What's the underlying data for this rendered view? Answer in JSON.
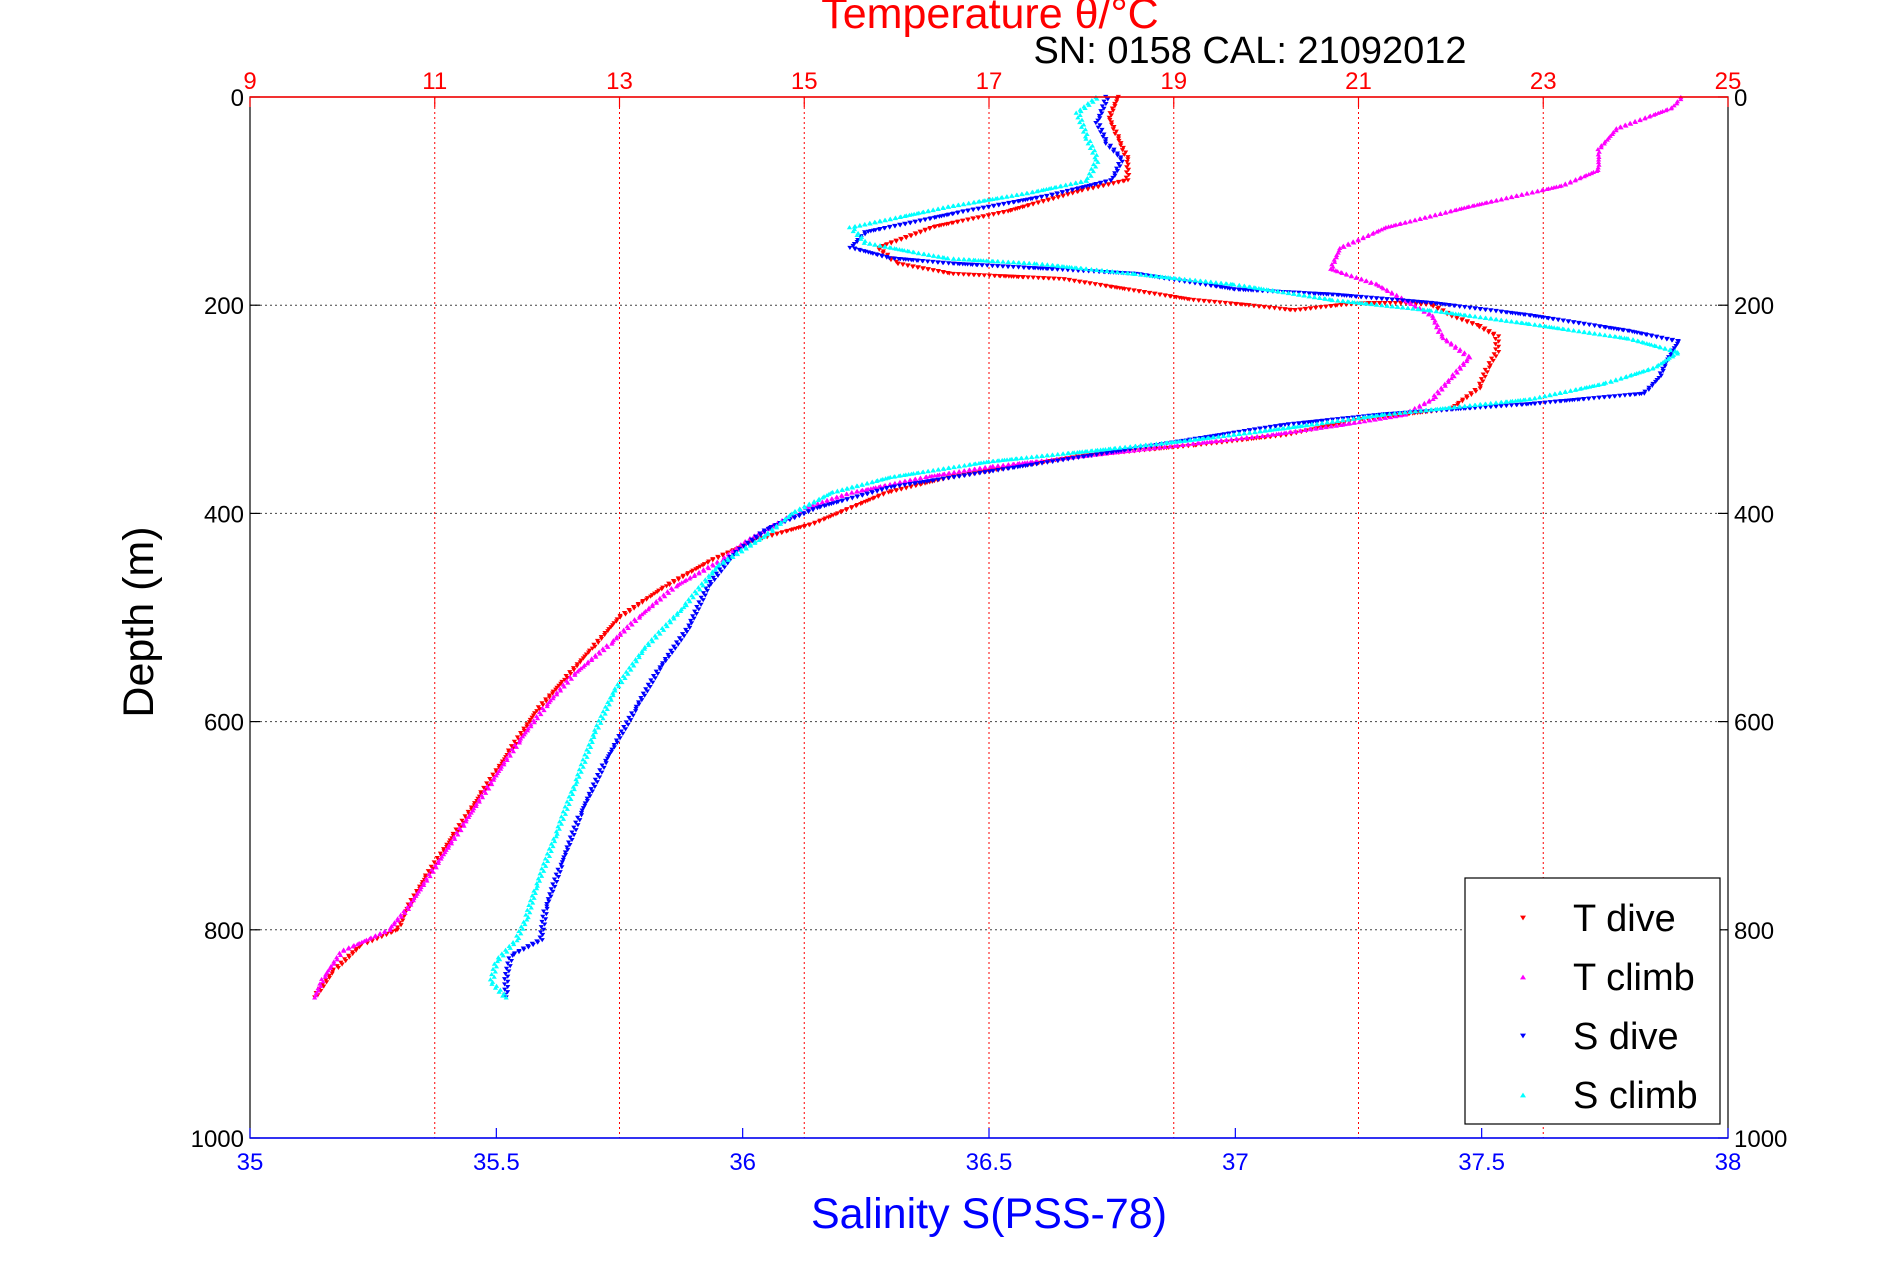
{
  "chart_data": {
    "type": "scatter",
    "title": "Temperature θ/°C",
    "subtitle": "SN: 0158  CAL: 21092012",
    "xlabel": "Salinity S(PSS-78)",
    "ylabel": "Depth (m)",
    "y_reversed": true,
    "ylim": [
      0,
      1000
    ],
    "yticks": [
      "0",
      "200",
      "400",
      "600",
      "800",
      "1000"
    ],
    "x_bottom": {
      "range": [
        35,
        38
      ],
      "ticks": [
        "35",
        "35.5",
        "36",
        "36.5",
        "37",
        "37.5",
        "38"
      ],
      "color": "#0000ff"
    },
    "x_top": {
      "range": [
        9,
        25
      ],
      "ticks": [
        "9",
        "11",
        "13",
        "15",
        "17",
        "19",
        "21",
        "23",
        "25"
      ],
      "color": "#ff0000"
    },
    "grid": "dotted",
    "legend_position": "bottom-right",
    "series": [
      {
        "name": "T dive",
        "axis": "top",
        "color": "#ff0000",
        "marker": "triangle-down",
        "points": [
          [
            18.4,
            0
          ],
          [
            18.3,
            20
          ],
          [
            18.4,
            40
          ],
          [
            18.5,
            60
          ],
          [
            18.5,
            80
          ],
          [
            18.0,
            90
          ],
          [
            17.2,
            110
          ],
          [
            16.4,
            125
          ],
          [
            15.8,
            145
          ],
          [
            16.0,
            160
          ],
          [
            16.6,
            170
          ],
          [
            17.8,
            175
          ],
          [
            18.5,
            185
          ],
          [
            19.2,
            195
          ],
          [
            19.8,
            200
          ],
          [
            20.3,
            205
          ],
          [
            20.8,
            200
          ],
          [
            21.1,
            198
          ],
          [
            21.5,
            198
          ],
          [
            21.8,
            200
          ],
          [
            22.0,
            210
          ],
          [
            22.3,
            220
          ],
          [
            22.5,
            230
          ],
          [
            22.5,
            245
          ],
          [
            22.4,
            260
          ],
          [
            22.3,
            280
          ],
          [
            22.0,
            300
          ],
          [
            21.0,
            310
          ],
          [
            20.2,
            325
          ],
          [
            19.2,
            335
          ],
          [
            18.0,
            345
          ],
          [
            17.3,
            355
          ],
          [
            16.6,
            365
          ],
          [
            15.9,
            380
          ],
          [
            15.5,
            395
          ],
          [
            15.1,
            410
          ],
          [
            14.5,
            425
          ],
          [
            14.0,
            445
          ],
          [
            13.5,
            470
          ],
          [
            13.0,
            500
          ],
          [
            12.7,
            530
          ],
          [
            12.4,
            560
          ],
          [
            12.1,
            590
          ],
          [
            11.8,
            630
          ],
          [
            11.5,
            670
          ],
          [
            11.2,
            710
          ],
          [
            10.9,
            750
          ],
          [
            10.7,
            780
          ],
          [
            10.6,
            800
          ],
          [
            10.2,
            815
          ],
          [
            9.9,
            840
          ],
          [
            9.7,
            865
          ]
        ]
      },
      {
        "name": "T climb",
        "axis": "top",
        "color": "#ff00ff",
        "marker": "triangle-up",
        "points": [
          [
            24.5,
            0
          ],
          [
            24.4,
            10
          ],
          [
            23.8,
            30
          ],
          [
            23.6,
            50
          ],
          [
            23.6,
            70
          ],
          [
            23.2,
            85
          ],
          [
            22.2,
            105
          ],
          [
            21.3,
            125
          ],
          [
            20.8,
            145
          ],
          [
            20.7,
            165
          ],
          [
            21.2,
            180
          ],
          [
            21.5,
            195
          ],
          [
            21.8,
            210
          ],
          [
            21.9,
            230
          ],
          [
            22.2,
            250
          ],
          [
            22.0,
            270
          ],
          [
            21.8,
            290
          ],
          [
            21.5,
            305
          ],
          [
            20.8,
            315
          ],
          [
            20.0,
            325
          ],
          [
            19.0,
            335
          ],
          [
            18.0,
            345
          ],
          [
            17.0,
            355
          ],
          [
            16.3,
            365
          ],
          [
            15.5,
            380
          ],
          [
            15.0,
            395
          ],
          [
            14.7,
            410
          ],
          [
            14.4,
            425
          ],
          [
            14.1,
            445
          ],
          [
            13.6,
            470
          ],
          [
            13.2,
            500
          ],
          [
            12.9,
            525
          ],
          [
            12.5,
            555
          ],
          [
            12.2,
            585
          ],
          [
            11.9,
            620
          ],
          [
            11.6,
            660
          ],
          [
            11.3,
            700
          ],
          [
            11.0,
            740
          ],
          [
            10.7,
            780
          ],
          [
            10.5,
            800
          ],
          [
            10.0,
            820
          ],
          [
            9.8,
            845
          ],
          [
            9.7,
            865
          ]
        ]
      },
      {
        "name": "S dive",
        "axis": "bottom",
        "color": "#0000ff",
        "marker": "triangle-down",
        "points": [
          [
            36.74,
            0
          ],
          [
            36.72,
            25
          ],
          [
            36.74,
            45
          ],
          [
            36.77,
            60
          ],
          [
            36.75,
            80
          ],
          [
            36.62,
            95
          ],
          [
            36.45,
            110
          ],
          [
            36.25,
            130
          ],
          [
            36.22,
            145
          ],
          [
            36.3,
            155
          ],
          [
            36.42,
            160
          ],
          [
            36.8,
            170
          ],
          [
            37.0,
            185
          ],
          [
            37.2,
            190
          ],
          [
            37.4,
            198
          ],
          [
            37.6,
            210
          ],
          [
            37.8,
            225
          ],
          [
            37.9,
            235
          ],
          [
            37.88,
            250
          ],
          [
            37.86,
            270
          ],
          [
            37.83,
            285
          ],
          [
            37.6,
            295
          ],
          [
            37.3,
            305
          ],
          [
            37.1,
            315
          ],
          [
            36.9,
            330
          ],
          [
            36.7,
            345
          ],
          [
            36.5,
            360
          ],
          [
            36.3,
            375
          ],
          [
            36.15,
            395
          ],
          [
            36.05,
            415
          ],
          [
            35.98,
            440
          ],
          [
            35.93,
            470
          ],
          [
            35.89,
            510
          ],
          [
            35.83,
            550
          ],
          [
            35.78,
            590
          ],
          [
            35.72,
            640
          ],
          [
            35.67,
            690
          ],
          [
            35.63,
            740
          ],
          [
            35.6,
            780
          ],
          [
            35.59,
            810
          ],
          [
            35.53,
            825
          ],
          [
            35.52,
            845
          ],
          [
            35.52,
            865
          ]
        ]
      },
      {
        "name": "S climb",
        "axis": "bottom",
        "color": "#00ffff",
        "marker": "triangle-up",
        "points": [
          [
            36.72,
            0
          ],
          [
            36.68,
            15
          ],
          [
            36.7,
            40
          ],
          [
            36.72,
            60
          ],
          [
            36.7,
            80
          ],
          [
            36.58,
            92
          ],
          [
            36.42,
            105
          ],
          [
            36.22,
            125
          ],
          [
            36.25,
            140
          ],
          [
            36.36,
            150
          ],
          [
            36.42,
            155
          ],
          [
            36.6,
            160
          ],
          [
            36.8,
            170
          ],
          [
            37.0,
            180
          ],
          [
            37.2,
            195
          ],
          [
            37.4,
            205
          ],
          [
            37.6,
            218
          ],
          [
            37.8,
            232
          ],
          [
            37.9,
            245
          ],
          [
            37.85,
            260
          ],
          [
            37.75,
            275
          ],
          [
            37.6,
            290
          ],
          [
            37.3,
            305
          ],
          [
            37.1,
            318
          ],
          [
            36.9,
            330
          ],
          [
            36.7,
            340
          ],
          [
            36.5,
            350
          ],
          [
            36.3,
            365
          ],
          [
            36.18,
            380
          ],
          [
            36.1,
            400
          ],
          [
            36.05,
            420
          ],
          [
            35.95,
            450
          ],
          [
            35.88,
            490
          ],
          [
            35.8,
            530
          ],
          [
            35.74,
            570
          ],
          [
            35.7,
            610
          ],
          [
            35.66,
            660
          ],
          [
            35.62,
            710
          ],
          [
            35.58,
            760
          ],
          [
            35.56,
            790
          ],
          [
            35.54,
            810
          ],
          [
            35.5,
            830
          ],
          [
            35.49,
            850
          ],
          [
            35.52,
            865
          ]
        ]
      }
    ]
  }
}
